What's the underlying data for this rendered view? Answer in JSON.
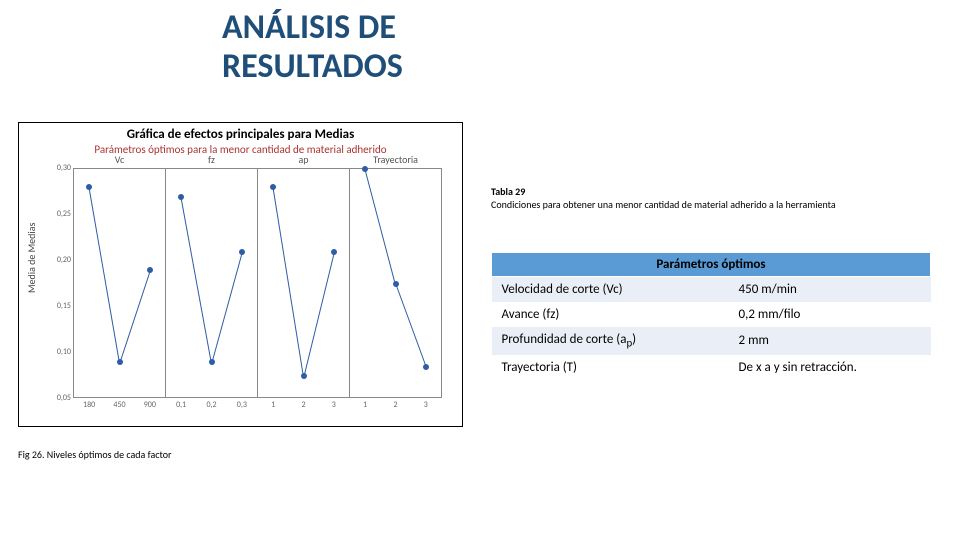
{
  "title_line1": "ANÁLISIS DE",
  "title_line2": "RESULTADOS",
  "title_color": "#1f4e79",
  "chart": {
    "type": "line",
    "title": "Gráfica de efectos principales para Medias",
    "subtitle": "Parámetros óptimos para la menor cantidad de material adherido",
    "y_label": "Media de Medias",
    "ylim": [
      0.05,
      0.3
    ],
    "yticks": [
      0.05,
      0.1,
      0.15,
      0.2,
      0.25,
      0.3
    ],
    "ytick_labels": [
      "0,05",
      "0,10",
      "0,15",
      "0,20",
      "0,25",
      "0,30"
    ],
    "point_color": "#2e5ca6",
    "line_color": "#2e5ca6",
    "panel_border": "#888888",
    "panels": [
      {
        "label": "Vc",
        "x_labels": [
          "180",
          "450",
          "900"
        ],
        "y": [
          0.28,
          0.09,
          0.19
        ]
      },
      {
        "label": "fz",
        "x_labels": [
          "0,1",
          "0,2",
          "0,3"
        ],
        "y": [
          0.27,
          0.09,
          0.21
        ]
      },
      {
        "label": "ap",
        "x_labels": [
          "1",
          "2",
          "3"
        ],
        "y": [
          0.28,
          0.075,
          0.21
        ]
      },
      {
        "label": "Trayectoria",
        "x_labels": [
          "1",
          "2",
          "3"
        ],
        "y": [
          0.3,
          0.175,
          0.085
        ]
      }
    ]
  },
  "figure_caption": "Fig 26. Niveles óptimos de cada factor",
  "table_caption_bold": "Tabla 29",
  "table_caption_rest": "Condiciones para obtener una menor cantidad de material adherido a la herramienta",
  "table": {
    "header": "Parámetros óptimos",
    "header_bg": "#5b9bd5",
    "row_odd_bg": "#eaeff7",
    "rows": [
      {
        "param": "Velocidad de corte (Vc)",
        "value": "450 m/min"
      },
      {
        "param": "Avance (fz)",
        "value": "0,2 mm/filo"
      },
      {
        "param_html": "Profundidad de corte (a<sub>p</sub>)",
        "param": "Profundidad de corte (ap)",
        "value": "2 mm"
      },
      {
        "param": "Trayectoria (T)",
        "value": "De x a y sin retracción."
      }
    ]
  }
}
